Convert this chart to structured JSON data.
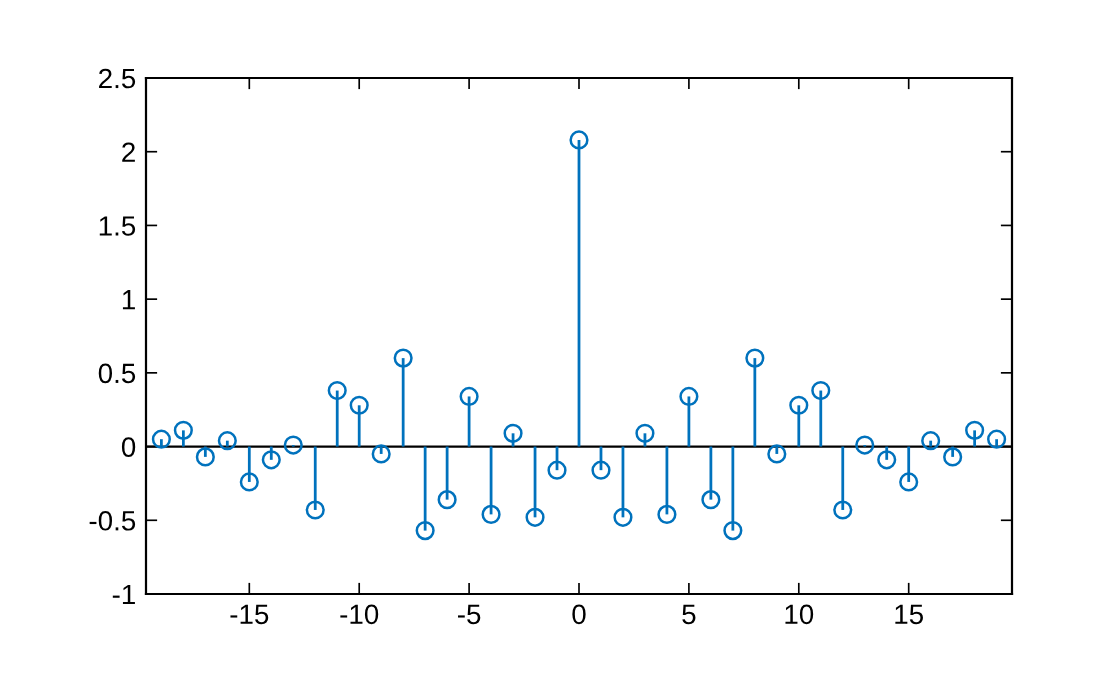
{
  "chart_data": {
    "type": "lollipop",
    "x": [
      -19,
      -18,
      -17,
      -16,
      -15,
      -14,
      -13,
      -12,
      -11,
      -10,
      -9,
      -8,
      -7,
      -6,
      -5,
      -4,
      -3,
      -2,
      -1,
      0,
      1,
      2,
      3,
      4,
      5,
      6,
      7,
      8,
      9,
      10,
      11,
      12,
      13,
      14,
      15,
      16,
      17,
      18,
      19
    ],
    "series": [
      {
        "color": "#0072bd",
        "values": [
          0.05,
          0.11,
          -0.07,
          0.04,
          -0.24,
          -0.09,
          0.01,
          -0.43,
          0.38,
          0.28,
          -0.05,
          0.6,
          -0.57,
          -0.36,
          0.34,
          -0.46,
          0.09,
          -0.48,
          -0.16,
          2.08,
          -0.16,
          -0.48,
          0.09,
          -0.46,
          0.34,
          -0.36,
          -0.57,
          0.6,
          -0.05,
          0.28,
          0.38,
          -0.43,
          0.01,
          -0.09,
          -0.24,
          0.04,
          -0.07,
          0.11,
          0.05
        ]
      }
    ],
    "marker": "circle",
    "xlim": [
      -19.7,
      19.7
    ],
    "xticks": [
      -15,
      -10,
      -5,
      0,
      5,
      10,
      15
    ],
    "ylim": [
      -1,
      2.5
    ],
    "yticks": [
      -1,
      -0.5,
      0,
      0.5,
      1,
      1.5,
      2,
      2.5
    ],
    "ref_lines": [
      {
        "axis": "y",
        "value": 0,
        "color": "#000000"
      }
    ]
  }
}
